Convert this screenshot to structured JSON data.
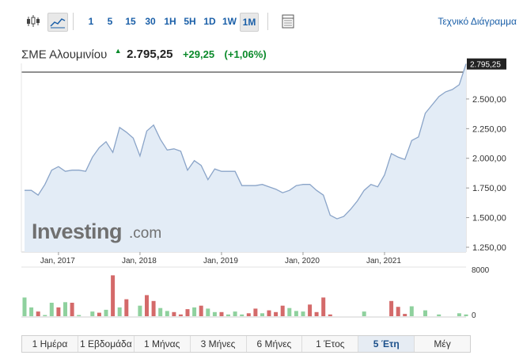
{
  "toolbar": {
    "chart_type_icon": "candlestick-icon",
    "area_icon": "area-chart-icon",
    "table_icon": "table-icon",
    "intervals": [
      {
        "label": "1",
        "active": false
      },
      {
        "label": "5",
        "active": false
      },
      {
        "label": "15",
        "active": false
      },
      {
        "label": "30",
        "active": false
      },
      {
        "label": "1H",
        "active": false
      },
      {
        "label": "5H",
        "active": false
      },
      {
        "label": "1D",
        "active": false
      },
      {
        "label": "1W",
        "active": false
      },
      {
        "label": "1M",
        "active": true
      }
    ],
    "technical_chart_link": "Τεχνικό Διάγραμμα"
  },
  "quote": {
    "name": "ΣΜΕ Αλουμινίου",
    "price": "2.795,25",
    "change": "+29,25",
    "change_pct": "(+1,06%)",
    "arrow_icon": "up-arrow-icon",
    "up_color": "#0a8a2a"
  },
  "watermark": {
    "brand": "Investing",
    "suffix": ".com"
  },
  "chart_data": {
    "type": "area",
    "price_label": "2.795,25",
    "x_tick_labels": [
      "Jan, 2017",
      "Jan, 2018",
      "Jan, 2019",
      "Jan, 2020",
      "Jan, 2021"
    ],
    "y_tick_labels": [
      "1.250,00",
      "1.500,00",
      "1.750,00",
      "2.000,00",
      "2.250,00",
      "2.500,00"
    ],
    "y_ticks": [
      1250,
      1500,
      1750,
      2000,
      2250,
      2500
    ],
    "ylim": [
      1210,
      2800
    ],
    "first_month": [
      2016,
      8
    ],
    "series": [
      {
        "values": [
          1730,
          1730,
          1690,
          1780,
          1900,
          1930,
          1890,
          1900,
          1900,
          1890,
          2010,
          2090,
          2140,
          2050,
          2260,
          2220,
          2170,
          2020,
          2230,
          2280,
          2160,
          2070,
          2080,
          2060,
          1900,
          1980,
          1940,
          1820,
          1910,
          1890,
          1890,
          1890,
          1770,
          1770,
          1770,
          1780,
          1760,
          1740,
          1710,
          1730,
          1770,
          1780,
          1780,
          1730,
          1690,
          1520,
          1490,
          1510,
          1570,
          1640,
          1730,
          1780,
          1760,
          1860,
          2040,
          2010,
          1990,
          2150,
          2180,
          2380,
          2450,
          2520,
          2560,
          2580,
          2620,
          2795.25
        ]
      }
    ],
    "volume": {
      "ylim": [
        0,
        8000
      ],
      "y_tick_labels": [
        "8000",
        "0"
      ],
      "values": [
        3200,
        1500,
        800,
        200,
        2300,
        1500,
        2400,
        2300,
        200,
        0,
        800,
        600,
        1100,
        7000,
        1500,
        2900,
        0,
        1800,
        3600,
        2600,
        1400,
        900,
        700,
        300,
        1200,
        1500,
        1800,
        1300,
        700,
        700,
        300,
        800,
        300,
        500,
        1300,
        500,
        1000,
        700,
        1800,
        1400,
        900,
        800,
        2000,
        700,
        3200,
        300,
        0,
        0,
        0,
        0,
        800,
        0,
        0,
        0,
        2600,
        1600,
        400,
        1700,
        0,
        1000,
        0,
        300,
        0,
        0,
        500,
        300
      ],
      "direction": [
        "up",
        "up",
        "down",
        "up",
        "up",
        "down",
        "up",
        "down",
        "up",
        "up",
        "up",
        "down",
        "up",
        "down",
        "up",
        "down",
        "down",
        "up",
        "down",
        "down",
        "up",
        "up",
        "down",
        "down",
        "down",
        "up",
        "down",
        "up",
        "up",
        "down",
        "up",
        "up",
        "up",
        "down",
        "down",
        "up",
        "down",
        "down",
        "down",
        "up",
        "up",
        "up",
        "down",
        "down",
        "down",
        "down",
        "down",
        "up",
        "up",
        "up",
        "up",
        "down",
        "down",
        "up",
        "down",
        "down",
        "down",
        "up",
        "up",
        "up",
        "up",
        "up",
        "up",
        "up",
        "up",
        "up"
      ],
      "up_color": "#8fd19e",
      "down_color": "#d46a6a"
    },
    "line_color": "#8aa4c8",
    "fill_color": "#e3ecf6"
  },
  "periods": [
    {
      "label": "1 Ημέρα",
      "active": false
    },
    {
      "label": "1 Εβδομάδα",
      "active": false
    },
    {
      "label": "1 Μήνας",
      "active": false
    },
    {
      "label": "3 Μήνες",
      "active": false
    },
    {
      "label": "6 Μήνες",
      "active": false
    },
    {
      "label": "1 Έτος",
      "active": false
    },
    {
      "label": "5 Έτη",
      "active": true
    },
    {
      "label": "Μέγ",
      "active": false
    }
  ]
}
